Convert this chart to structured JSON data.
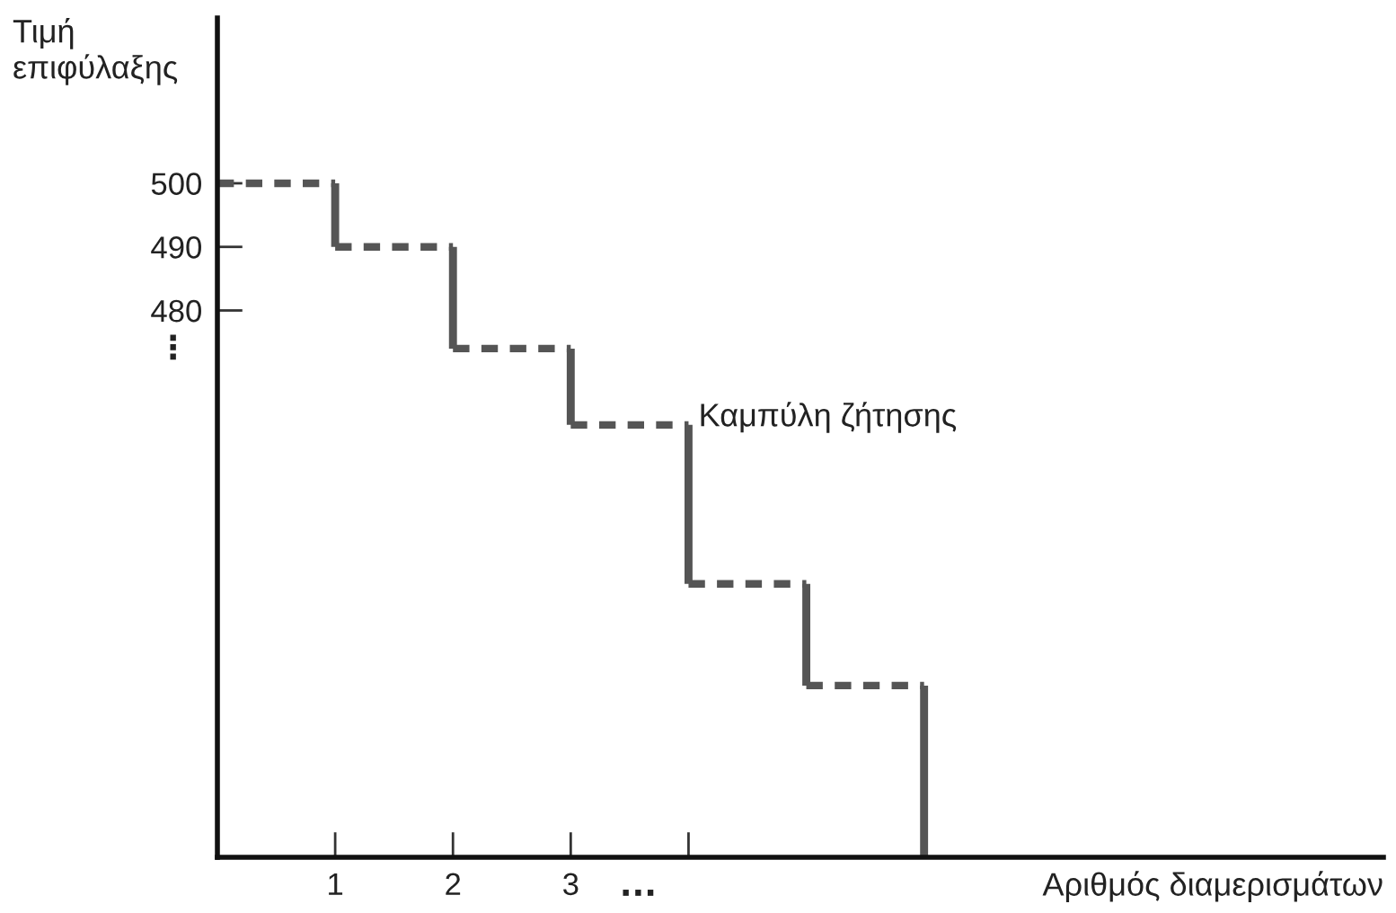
{
  "chart_data": {
    "type": "step",
    "xlabel": "Αριθμός διαμερισμάτων",
    "ylabel": "Τιμή\nεπιφύλαξης",
    "xlim": [
      0,
      9.9
    ],
    "ylim": [
      394,
      526
    ],
    "xticks": [
      1,
      2,
      3,
      {
        "value": 4,
        "label": null
      }
    ],
    "yticks": [
      500,
      490,
      480
    ],
    "grid": false,
    "legend": false,
    "marker": "none",
    "line_style": "dotted",
    "series": [
      {
        "color": "#555555",
        "x": [
          0,
          1,
          2,
          3,
          4,
          5,
          6
        ],
        "values": [
          500,
          490,
          474,
          462,
          437,
          421,
          394
        ]
      }
    ],
    "annotations": [
      {
        "text": "Καμπύλη ζήτησης",
        "x": 4,
        "y": 462
      },
      "⋮",
      "···"
    ]
  }
}
